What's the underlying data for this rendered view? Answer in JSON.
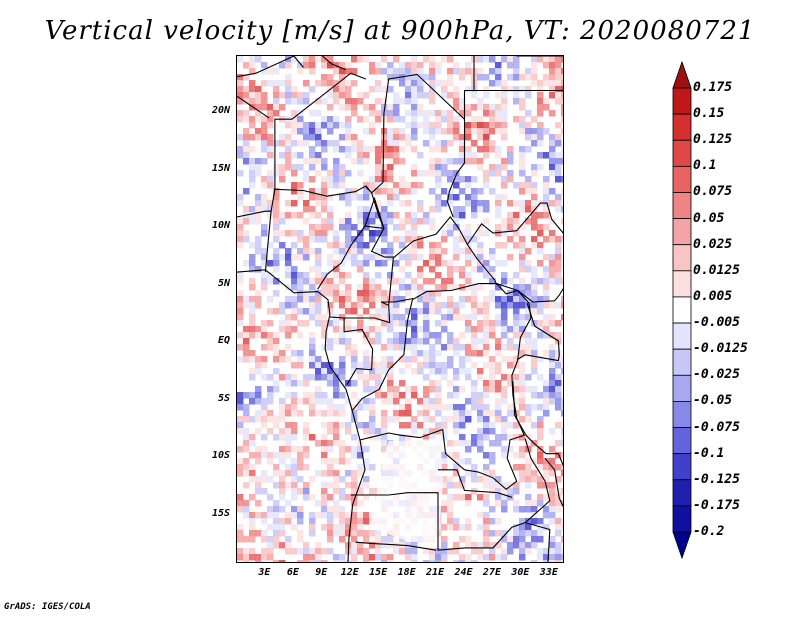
{
  "title": "Vertical velocity [m/s] at 900hPa, VT: 2020080721",
  "credit": "GrADS: IGES/COLA",
  "map": {
    "lat_labels": [
      "20N",
      "15N",
      "10N",
      "5N",
      "EQ",
      "5S",
      "10S",
      "15S"
    ],
    "lat_values": [
      20,
      15,
      10,
      5,
      0,
      -5,
      -10,
      -15
    ],
    "lon_labels": [
      "3E",
      "6E",
      "9E",
      "12E",
      "15E",
      "18E",
      "21E",
      "24E",
      "27E",
      "30E",
      "33E"
    ],
    "lon_values": [
      3,
      6,
      9,
      12,
      15,
      18,
      21,
      24,
      27,
      30,
      33
    ]
  },
  "colorbar": {
    "labels": [
      "0.175",
      "0.15",
      "0.125",
      "0.1",
      "0.075",
      "0.05",
      "0.025",
      "0.0125",
      "0.005",
      "-0.005",
      "-0.0125",
      "-0.025",
      "-0.05",
      "-0.075",
      "-0.1",
      "-0.125",
      "-0.175",
      "-0.2"
    ],
    "colors": [
      "#a01010",
      "#c01818",
      "#d43030",
      "#e04848",
      "#e86464",
      "#f08484",
      "#f4a4a4",
      "#f8c4c4",
      "#fce0e0",
      "#ffffff",
      "#e4e4fc",
      "#c8c8f8",
      "#a8a8f0",
      "#8888e8",
      "#6464dc",
      "#4040cc",
      "#2020b0",
      "#1010a0",
      "#000090"
    ]
  }
}
